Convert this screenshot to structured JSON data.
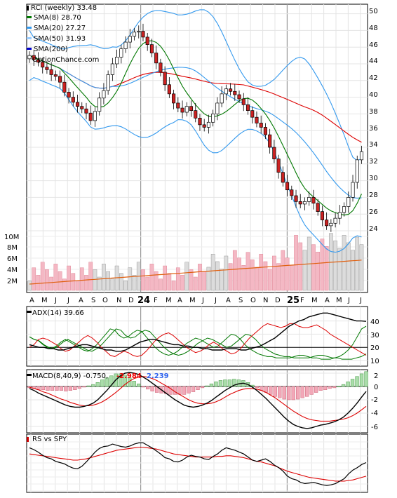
{
  "chart_data": [
    {
      "type": "candlestick",
      "panel": "price",
      "title": "RCI (weekly) 33.48",
      "legend": [
        {
          "label": "SMA(8) 28.70",
          "color": "#007700"
        },
        {
          "label": "SMA(20) 27.27",
          "color": "#3399ee"
        },
        {
          "label": "SMA(50) 31.93",
          "color": "#99ccff"
        },
        {
          "label": "SMA(200)",
          "color": "#0000cc"
        }
      ],
      "watermark": "OptionChance.com",
      "y_ticks": [
        "50",
        "48",
        "46",
        "44",
        "42",
        "40",
        "38",
        "36",
        "34",
        "32",
        "30",
        "28",
        "26",
        "24"
      ],
      "ylim": [
        22.3,
        51.2
      ],
      "x_labels": [
        "A",
        "M",
        "J",
        "J",
        "A",
        "S",
        "O",
        "N",
        "D",
        "24",
        "F",
        "M",
        "A",
        "M",
        "J",
        "J",
        "A",
        "S",
        "O",
        "N",
        "D",
        "25",
        "F",
        "M",
        "A",
        "M",
        "J",
        "J"
      ],
      "closes": [
        45.0,
        44.5,
        44.2,
        43.6,
        43.3,
        42.7,
        42.5,
        41.8,
        40.6,
        40.0,
        39.4,
        38.9,
        38.6,
        38.1,
        37.2,
        38.3,
        39.9,
        40.8,
        42.7,
        44.0,
        44.8,
        45.8,
        46.6,
        47.3,
        47.8,
        47.9,
        47.2,
        46.3,
        45.3,
        44.1,
        43.0,
        41.5,
        40.4,
        39.3,
        38.7,
        38.2,
        38.9,
        38.4,
        37.5,
        36.7,
        36.4,
        37.0,
        38.0,
        39.3,
        40.4,
        41.0,
        40.7,
        40.3,
        39.8,
        39.1,
        38.4,
        37.6,
        36.9,
        36.4,
        35.5,
        34.0,
        32.6,
        31.0,
        29.8,
        28.9,
        28.2,
        27.5,
        27.2,
        27.5,
        28.0,
        27.3,
        26.3,
        25.3,
        24.6,
        24.9,
        25.5,
        26.2,
        26.9,
        28.0,
        29.8,
        32.5,
        33.48
      ],
      "volume_ticks": [
        "10M",
        "8M",
        "6M",
        "4M",
        "2M"
      ],
      "sma8": 28.7,
      "sma20": 27.27,
      "sma50": 31.93
    },
    {
      "type": "line",
      "panel": "adx",
      "title": "ADX(14) 39.66",
      "y_ticks": [
        "40",
        "30",
        "20",
        "10"
      ],
      "ylim": [
        5,
        47
      ],
      "reference_lines": [
        20,
        25
      ],
      "adx": [
        22,
        21,
        20,
        20,
        19,
        19,
        18,
        18,
        19,
        20,
        21,
        22,
        22,
        21,
        20,
        19,
        18,
        18,
        17,
        17,
        18,
        20,
        22,
        24,
        25,
        26,
        26,
        25,
        24,
        23,
        22,
        22,
        21,
        21,
        20,
        20,
        19,
        19,
        18,
        18,
        18,
        19,
        19,
        19,
        18,
        18,
        19,
        20,
        21,
        23,
        25,
        27,
        30,
        33,
        36,
        38,
        40,
        41,
        43,
        44,
        45,
        46,
        46,
        45,
        44,
        43,
        42,
        41,
        40,
        40,
        39.66
      ],
      "plus_di": [
        28,
        26,
        25,
        22,
        20,
        19,
        21,
        24,
        26,
        24,
        22,
        20,
        18,
        17,
        19,
        22,
        26,
        30,
        34,
        33,
        29,
        27,
        28,
        31,
        33,
        32,
        28,
        24,
        20,
        17,
        15,
        14,
        15,
        17,
        20,
        23,
        25,
        27,
        26,
        24,
        22,
        20,
        21,
        24,
        27,
        30,
        29,
        26,
        22,
        19,
        17,
        15,
        14,
        13,
        13,
        12,
        12,
        12,
        12,
        13,
        14,
        14,
        13,
        12,
        12,
        11,
        11,
        11,
        12,
        13,
        15,
        18,
        22,
        28,
        34,
        36
      ],
      "minus_di": [
        20,
        22,
        26,
        27,
        26,
        24,
        22,
        19,
        17,
        18,
        21,
        24,
        27,
        29,
        27,
        24,
        20,
        17,
        14,
        13,
        15,
        17,
        16,
        14,
        13,
        14,
        17,
        21,
        25,
        28,
        30,
        31,
        29,
        26,
        23,
        20,
        18,
        16,
        17,
        19,
        22,
        24,
        22,
        19,
        17,
        15,
        16,
        19,
        23,
        27,
        30,
        33,
        36,
        38,
        37,
        36,
        35,
        36,
        38,
        38,
        36,
        35,
        35,
        36,
        37,
        35,
        33,
        30,
        28,
        26,
        24,
        22,
        20,
        18,
        16,
        14
      ]
    },
    {
      "type": "bar+line",
      "panel": "macd",
      "title": "MACD(8,40,9) -0.750,",
      "labels": [
        {
          "text": "-2.984",
          "color": "#ee0000"
        },
        {
          "text": "2.239",
          "color": "#3366ee"
        }
      ],
      "y_ticks": [
        "2",
        "0",
        "-2",
        "-4",
        "-6"
      ],
      "ylim": [
        -6.8,
        2.4
      ],
      "macd": [
        -0.3,
        -0.6,
        -1.0,
        -1.3,
        -1.6,
        -1.9,
        -2.2,
        -2.5,
        -2.8,
        -3.0,
        -3.1,
        -3.1,
        -3.0,
        -2.8,
        -2.5,
        -2.0,
        -1.3,
        -0.6,
        0.2,
        1.0,
        1.6,
        2.0,
        2.1,
        2.0,
        1.8,
        1.4,
        1.0,
        0.5,
        0.0,
        -0.5,
        -1.0,
        -1.5,
        -2.0,
        -2.4,
        -2.8,
        -3.0,
        -3.1,
        -3.0,
        -2.8,
        -2.5,
        -2.1,
        -1.6,
        -1.1,
        -0.6,
        -0.2,
        0.2,
        0.4,
        0.5,
        0.3,
        -0.1,
        -0.6,
        -1.2,
        -1.8,
        -2.5,
        -3.2,
        -3.9,
        -4.6,
        -5.2,
        -5.7,
        -6.0,
        -6.2,
        -6.3,
        -6.2,
        -6.0,
        -5.8,
        -5.7,
        -5.5,
        -5.3,
        -5.0,
        -4.6,
        -4.0,
        -3.3,
        -2.5,
        -1.6,
        -0.75
      ],
      "signal": [
        -0.1,
        -0.3,
        -0.5,
        -0.8,
        -1.0,
        -1.3,
        -1.6,
        -1.9,
        -2.1,
        -2.4,
        -2.6,
        -2.8,
        -2.9,
        -2.9,
        -2.8,
        -2.6,
        -2.3,
        -1.9,
        -1.4,
        -0.9,
        -0.3,
        0.3,
        0.8,
        1.2,
        1.4,
        1.5,
        1.4,
        1.2,
        0.9,
        0.5,
        0.1,
        -0.3,
        -0.8,
        -1.2,
        -1.6,
        -2.0,
        -2.3,
        -2.5,
        -2.6,
        -2.6,
        -2.5,
        -2.3,
        -2.0,
        -1.6,
        -1.2,
        -0.9,
        -0.6,
        -0.4,
        -0.3,
        -0.3,
        -0.4,
        -0.6,
        -0.9,
        -1.3,
        -1.7,
        -2.2,
        -2.7,
        -3.2,
        -3.7,
        -4.1,
        -4.5,
        -4.8,
        -5.0,
        -5.1,
        -5.2,
        -5.2,
        -5.2,
        -5.1,
        -5.0,
        -4.9,
        -4.7,
        -4.4,
        -4.0,
        -3.5,
        -2.98
      ]
    },
    {
      "type": "line",
      "panel": "relative-strength",
      "title": "RS vs SPY",
      "rs": [
        70,
        67,
        63,
        58,
        54,
        52,
        48,
        46,
        44,
        40,
        37,
        36,
        40,
        47,
        55,
        63,
        69,
        72,
        73,
        76,
        74,
        72,
        71,
        73,
        76,
        78,
        78,
        74,
        70,
        65,
        60,
        54,
        52,
        48,
        47,
        50,
        55,
        58,
        56,
        55,
        52,
        51,
        56,
        60,
        66,
        70,
        68,
        66,
        63,
        60,
        55,
        50,
        48,
        50,
        52,
        48,
        42,
        38,
        32,
        24,
        20,
        18,
        14,
        12,
        13,
        14,
        12,
        10,
        9,
        10,
        12,
        16,
        20,
        28,
        34,
        38,
        43,
        46
      ],
      "rs_ma": [
        60,
        59,
        58,
        57,
        56,
        55,
        54,
        53,
        52,
        51,
        50,
        50,
        51,
        52,
        54,
        56,
        58,
        60,
        62,
        64,
        66,
        67,
        68,
        69,
        70,
        71,
        71,
        70,
        69,
        68,
        66,
        64,
        62,
        60,
        59,
        58,
        57,
        56,
        55,
        55,
        55,
        55,
        55,
        56,
        56,
        57,
        57,
        56,
        55,
        54,
        52,
        50,
        48,
        47,
        45,
        43,
        41,
        38,
        35,
        32,
        30,
        28,
        26,
        24,
        22,
        21,
        20,
        19,
        18,
        17,
        16,
        16,
        16,
        17,
        18,
        20,
        22,
        24
      ]
    }
  ]
}
